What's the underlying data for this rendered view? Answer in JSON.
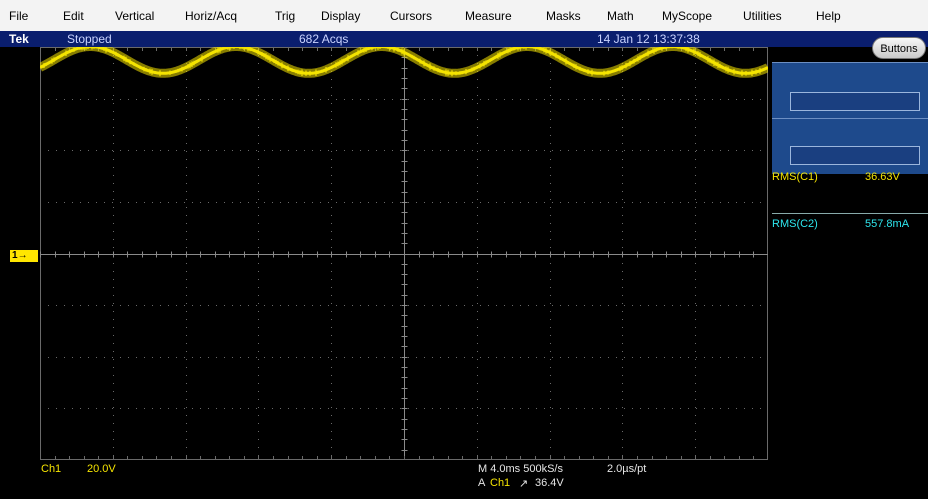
{
  "menu": [
    "File",
    "Edit",
    "Vertical",
    "Horiz/Acq",
    "Trig",
    "Display",
    "Cursors",
    "Measure",
    "Masks",
    "Math",
    "MyScope",
    "Utilities",
    "Help"
  ],
  "status": {
    "brand": "Tek",
    "state": "Stopped",
    "acqs": "682 Acqs",
    "datetime": "14 Jan 12 13:37:38"
  },
  "buttons_label": "Buttons",
  "channel_marker": "1",
  "measurements": [
    {
      "label": "RMS(C1)",
      "value": "36.63V",
      "color": "#f5e400"
    },
    {
      "label": "RMS(C2)",
      "value": "557.8mA",
      "color": "#2ee6ee"
    }
  ],
  "bottom": {
    "ch_label": "Ch1",
    "ch_scale": "20.0V",
    "timebase": "M 4.0ms 500kS/s",
    "resolution": "2.0µs/pt",
    "trig_prefix": "A",
    "trig_ch": "Ch1",
    "trig_slope": "↗",
    "trig_level": "36.4V"
  },
  "waveform": {
    "color": "#f5e400",
    "periods_on_screen": 5,
    "offset_div": 3.75,
    "amplitude_div": 0.26
  },
  "graticule": {
    "divisions_x": 10,
    "divisions_y": 8
  }
}
